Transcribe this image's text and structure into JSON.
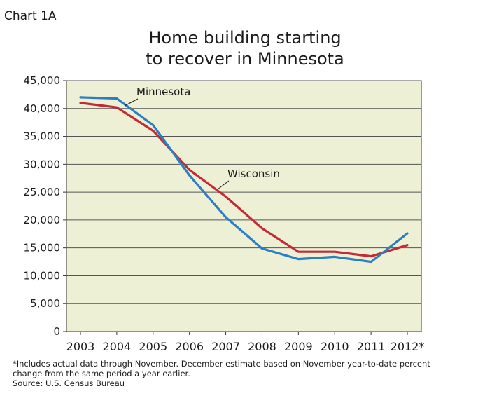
{
  "chart_number": "Chart 1A",
  "chart_data": {
    "type": "line",
    "title_lines": [
      "Home building starting",
      "to recover in Minnesota"
    ],
    "x": [
      "2003",
      "2004",
      "2005",
      "2006",
      "2007",
      "2008",
      "2009",
      "2010",
      "2011",
      "2012*"
    ],
    "ylim": [
      0,
      45000
    ],
    "yticks": [
      0,
      5000,
      10000,
      15000,
      20000,
      25000,
      30000,
      35000,
      40000,
      45000
    ],
    "ytick_labels": [
      "0",
      "5,000",
      "10,000",
      "15,000",
      "20,000",
      "25,000",
      "30,000",
      "35,000",
      "40,000",
      "45,000"
    ],
    "grid": true,
    "series": [
      {
        "name": "Minnesota",
        "color": "#2a7fc4",
        "values": [
          42000,
          41800,
          37000,
          28000,
          20500,
          14900,
          13000,
          13400,
          12500,
          17600
        ]
      },
      {
        "name": "Wisconsin",
        "color": "#c42a36",
        "values": [
          41000,
          40200,
          36000,
          29000,
          24200,
          18500,
          14300,
          14300,
          13500,
          15500
        ]
      }
    ]
  },
  "footnote_lines": [
    "*Includes actual data through November. December estimate based on November year-to-date percent",
    "change from the same period a year earlier.",
    "Source: U.S. Census Bureau"
  ],
  "colors": {
    "plot_background": "#eef0d6",
    "grid": "#555555"
  }
}
